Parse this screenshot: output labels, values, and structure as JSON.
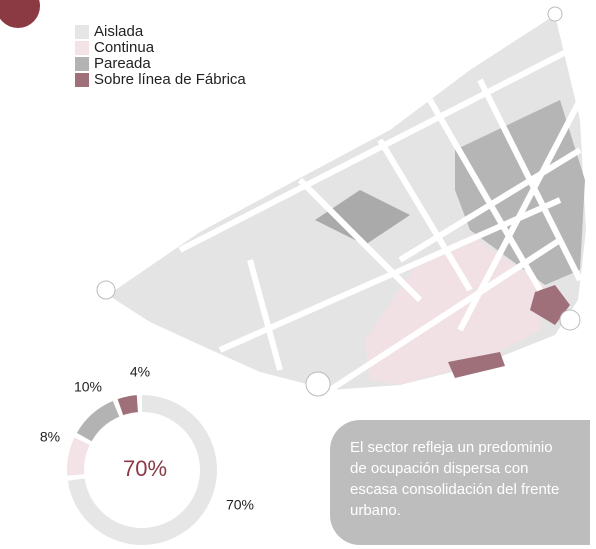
{
  "chart_data": {
    "type": "donut",
    "categories": [
      "Aislada",
      "Continua",
      "Pareada",
      "Sobre línea de Fábrica"
    ],
    "values": [
      70,
      8,
      10,
      4
    ],
    "value_labels": [
      "70%",
      "8%",
      "10%",
      "4%"
    ],
    "colors": [
      "#e6e6e6",
      "#f3e3e6",
      "#b3b3b3",
      "#a0707a"
    ],
    "center_label": "70%"
  },
  "note": {
    "lines": [
      "El sector refleja un predominio",
      "de ocupación dispersa con",
      "escasa consolidación del frente",
      "urbano."
    ]
  }
}
